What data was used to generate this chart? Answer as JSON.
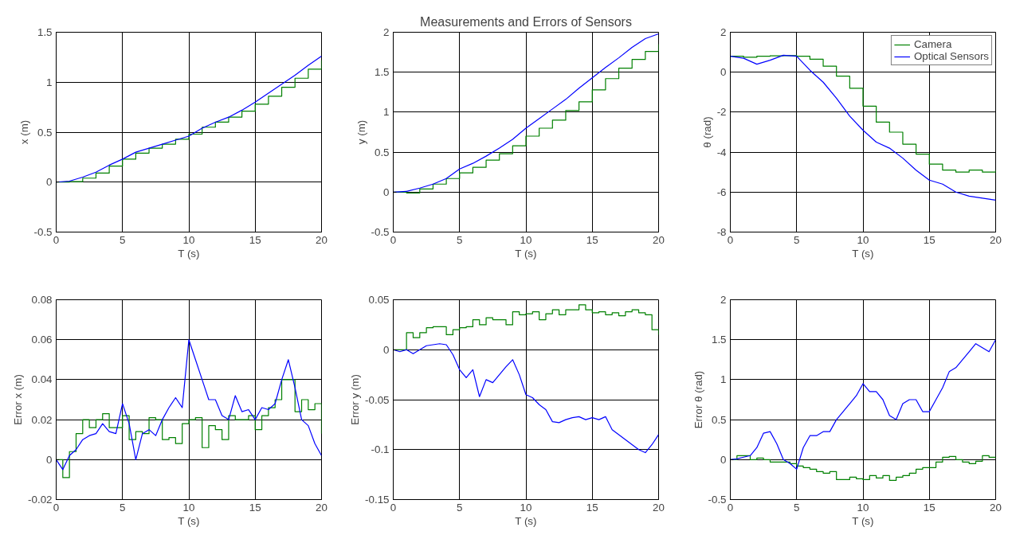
{
  "chart_data": [
    {
      "type": "line",
      "ylabel": "x (m)",
      "xlabel": "T (s)",
      "x": [
        0,
        1,
        2,
        3,
        4,
        5,
        6,
        7,
        8,
        9,
        10,
        11,
        12,
        13,
        14,
        15,
        16,
        17,
        18,
        19,
        20
      ],
      "xlim": [
        0,
        20
      ],
      "xticks": [
        0,
        5,
        10,
        15,
        20
      ],
      "ylim": [
        -0.5,
        1.5
      ],
      "yticks": [
        -0.5,
        0,
        0.5,
        1,
        1.5
      ],
      "grid": true,
      "legend": false,
      "series": [
        {
          "type": "step",
          "color": "#008000",
          "values": [
            0,
            0.005,
            0.04,
            0.09,
            0.16,
            0.23,
            0.29,
            0.34,
            0.38,
            0.43,
            0.48,
            0.55,
            0.6,
            0.65,
            0.71,
            0.78,
            0.86,
            0.95,
            1.04,
            1.13,
            1.22
          ]
        },
        {
          "type": "line",
          "color": "#0000ff",
          "values": [
            0,
            0.01,
            0.05,
            0.1,
            0.17,
            0.23,
            0.3,
            0.34,
            0.38,
            0.42,
            0.46,
            0.54,
            0.6,
            0.65,
            0.72,
            0.8,
            0.89,
            0.98,
            1.07,
            1.17,
            1.26
          ]
        }
      ]
    },
    {
      "type": "line",
      "title": "Measurements and Errors of Sensors",
      "ylabel": "y (m)",
      "xlabel": "T (s)",
      "x": [
        0,
        1,
        2,
        3,
        4,
        5,
        6,
        7,
        8,
        9,
        10,
        11,
        12,
        13,
        14,
        15,
        16,
        17,
        18,
        19,
        20
      ],
      "xlim": [
        0,
        20
      ],
      "xticks": [
        0,
        5,
        10,
        15,
        20
      ],
      "ylim": [
        -0.5,
        2
      ],
      "yticks": [
        -0.5,
        0,
        0.5,
        1,
        1.5,
        2
      ],
      "grid": true,
      "legend": false,
      "series": [
        {
          "type": "step",
          "color": "#008000",
          "values": [
            0,
            -0.01,
            0.04,
            0.1,
            0.17,
            0.24,
            0.31,
            0.4,
            0.48,
            0.58,
            0.7,
            0.8,
            0.9,
            1.02,
            1.13,
            1.28,
            1.42,
            1.55,
            1.66,
            1.76,
            1.85
          ]
        },
        {
          "type": "line",
          "color": "#0000ff",
          "values": [
            0,
            0.01,
            0.05,
            0.1,
            0.17,
            0.29,
            0.36,
            0.45,
            0.55,
            0.66,
            0.8,
            0.92,
            1.04,
            1.16,
            1.3,
            1.43,
            1.56,
            1.68,
            1.81,
            1.92,
            1.98
          ]
        }
      ]
    },
    {
      "type": "line",
      "ylabel": "θ (rad)",
      "xlabel": "T (s)",
      "x": [
        0,
        1,
        2,
        3,
        4,
        5,
        6,
        7,
        8,
        9,
        10,
        11,
        12,
        13,
        14,
        15,
        16,
        17,
        18,
        19,
        20
      ],
      "xlim": [
        0,
        20
      ],
      "xticks": [
        0,
        5,
        10,
        15,
        20
      ],
      "ylim": [
        -8,
        2
      ],
      "yticks": [
        -8,
        -6,
        -4,
        -2,
        0,
        2
      ],
      "grid": true,
      "legend": "top right",
      "series": [
        {
          "type": "step",
          "name": "Camera",
          "color": "#008000",
          "values": [
            0.8,
            0.75,
            0.8,
            0.82,
            0.83,
            0.8,
            0.65,
            0.3,
            -0.2,
            -0.8,
            -1.7,
            -2.5,
            -3.0,
            -3.6,
            -4.1,
            -4.6,
            -4.9,
            -5.0,
            -4.9,
            -5.0,
            -4.9
          ]
        },
        {
          "type": "line",
          "name": "Optical Sensors",
          "color": "#0000ff",
          "values": [
            0.8,
            0.7,
            0.4,
            0.6,
            0.85,
            0.8,
            0.1,
            -0.5,
            -1.3,
            -2.2,
            -2.9,
            -3.5,
            -3.8,
            -4.3,
            -4.9,
            -5.4,
            -5.6,
            -6.0,
            -6.2,
            -6.3,
            -6.4
          ]
        }
      ]
    },
    {
      "type": "line",
      "ylabel": "Error x (m)",
      "xlabel": "T (s)",
      "x": [
        0,
        0.5,
        1,
        1.5,
        2,
        2.5,
        3,
        3.5,
        4,
        4.5,
        5,
        5.5,
        6,
        6.5,
        7,
        7.5,
        8,
        8.5,
        9,
        9.5,
        10,
        10.5,
        11,
        11.5,
        12,
        12.5,
        13,
        13.5,
        14,
        14.5,
        15,
        15.5,
        16,
        16.5,
        17,
        17.5,
        18,
        18.5,
        19,
        19.5,
        20
      ],
      "xlim": [
        0,
        20
      ],
      "xticks": [
        0,
        5,
        10,
        15,
        20
      ],
      "ylim": [
        -0.02,
        0.08
      ],
      "yticks": [
        -0.02,
        0,
        0.02,
        0.04,
        0.06,
        0.08
      ],
      "grid": true,
      "legend": false,
      "series": [
        {
          "type": "step",
          "color": "#008000",
          "values": [
            0,
            -0.009,
            0.004,
            0.013,
            0.02,
            0.016,
            0.02,
            0.023,
            0.016,
            0.016,
            0.022,
            0.01,
            0.014,
            0.013,
            0.021,
            0.02,
            0.01,
            0.011,
            0.008,
            0.018,
            0.02,
            0.021,
            0.006,
            0.017,
            0.015,
            0.01,
            0.022,
            0.02,
            0.02,
            0.022,
            0.015,
            0.022,
            0.026,
            0.03,
            0.04,
            0.04,
            0.024,
            0.03,
            0.025,
            0.028,
            0.013
          ]
        },
        {
          "type": "line",
          "color": "#0000ff",
          "values": [
            0,
            -0.005,
            0.002,
            0.005,
            0.01,
            0.012,
            0.013,
            0.018,
            0.014,
            0.013,
            0.028,
            0.018,
            0.0,
            0.013,
            0.015,
            0.012,
            0.02,
            0.026,
            0.031,
            0.026,
            0.06,
            0.05,
            0.04,
            0.03,
            0.03,
            0.022,
            0.02,
            0.032,
            0.024,
            0.025,
            0.02,
            0.026,
            0.025,
            0.028,
            0.04,
            0.05,
            0.036,
            0.02,
            0.017,
            0.008,
            0.002
          ]
        }
      ]
    },
    {
      "type": "line",
      "ylabel": "Error y (m)",
      "xlabel": "T (s)",
      "x": [
        0,
        0.5,
        1,
        1.5,
        2,
        2.5,
        3,
        3.5,
        4,
        4.5,
        5,
        5.5,
        6,
        6.5,
        7,
        7.5,
        8,
        8.5,
        9,
        9.5,
        10,
        10.5,
        11,
        11.5,
        12,
        12.5,
        13,
        13.5,
        14,
        14.5,
        15,
        15.5,
        16,
        16.5,
        17,
        17.5,
        18,
        18.5,
        19,
        19.5,
        20
      ],
      "xlim": [
        0,
        20
      ],
      "xticks": [
        0,
        5,
        10,
        15,
        20
      ],
      "ylim": [
        -0.15,
        0.05
      ],
      "yticks": [
        -0.15,
        -0.1,
        -0.05,
        0,
        0.05
      ],
      "grid": true,
      "legend": false,
      "series": [
        {
          "type": "step",
          "color": "#008000",
          "values": [
            0,
            0,
            0.017,
            0.012,
            0.017,
            0.022,
            0.023,
            0.023,
            0.015,
            0.02,
            0.022,
            0.023,
            0.03,
            0.025,
            0.032,
            0.03,
            0.03,
            0.025,
            0.038,
            0.035,
            0.036,
            0.038,
            0.03,
            0.036,
            0.04,
            0.035,
            0.04,
            0.04,
            0.045,
            0.04,
            0.037,
            0.038,
            0.035,
            0.037,
            0.034,
            0.038,
            0.04,
            0.037,
            0.035,
            0.02,
            0.015
          ]
        },
        {
          "type": "line",
          "color": "#0000ff",
          "values": [
            0,
            -0.002,
            0,
            -0.004,
            0,
            0.004,
            0.005,
            0.006,
            0.005,
            -0.005,
            -0.02,
            -0.028,
            -0.02,
            -0.047,
            -0.03,
            -0.033,
            -0.025,
            -0.017,
            -0.01,
            -0.025,
            -0.045,
            -0.048,
            -0.055,
            -0.06,
            -0.072,
            -0.073,
            -0.07,
            -0.068,
            -0.067,
            -0.07,
            -0.068,
            -0.07,
            -0.067,
            -0.08,
            -0.085,
            -0.09,
            -0.095,
            -0.1,
            -0.103,
            -0.095,
            -0.085
          ]
        }
      ]
    },
    {
      "type": "line",
      "ylabel": "Error θ (rad)",
      "xlabel": "T (s)",
      "x": [
        0,
        0.5,
        1,
        1.5,
        2,
        2.5,
        3,
        3.5,
        4,
        4.5,
        5,
        5.5,
        6,
        6.5,
        7,
        7.5,
        8,
        8.5,
        9,
        9.5,
        10,
        10.5,
        11,
        11.5,
        12,
        12.5,
        13,
        13.5,
        14,
        14.5,
        15,
        15.5,
        16,
        16.5,
        17,
        17.5,
        18,
        18.5,
        19,
        19.5,
        20
      ],
      "xlim": [
        0,
        20
      ],
      "xticks": [
        0,
        5,
        10,
        15,
        20
      ],
      "ylim": [
        -0.5,
        2
      ],
      "yticks": [
        -0.5,
        0,
        0.5,
        1,
        1.5,
        2
      ],
      "grid": true,
      "legend": false,
      "series": [
        {
          "type": "step",
          "color": "#008000",
          "values": [
            0,
            0.05,
            0.05,
            0,
            0.02,
            0,
            -0.03,
            -0.03,
            -0.03,
            -0.05,
            -0.08,
            -0.1,
            -0.12,
            -0.15,
            -0.17,
            -0.15,
            -0.25,
            -0.25,
            -0.22,
            -0.24,
            -0.25,
            -0.2,
            -0.23,
            -0.2,
            -0.26,
            -0.22,
            -0.2,
            -0.17,
            -0.12,
            -0.1,
            -0.1,
            -0.03,
            0.03,
            0.04,
            0,
            -0.03,
            -0.05,
            -0.02,
            0.05,
            0.03,
            0.02
          ]
        },
        {
          "type": "line",
          "color": "#0000ff",
          "values": [
            0,
            0.01,
            0.03,
            0.05,
            0.15,
            0.33,
            0.35,
            0.2,
            0,
            -0.05,
            -0.12,
            0.15,
            0.3,
            0.3,
            0.35,
            0.35,
            0.5,
            0.6,
            0.7,
            0.8,
            0.95,
            0.85,
            0.85,
            0.75,
            0.55,
            0.5,
            0.7,
            0.75,
            0.75,
            0.6,
            0.6,
            0.75,
            0.9,
            1.1,
            1.15,
            1.25,
            1.35,
            1.45,
            1.4,
            1.35,
            1.5
          ]
        }
      ]
    }
  ]
}
